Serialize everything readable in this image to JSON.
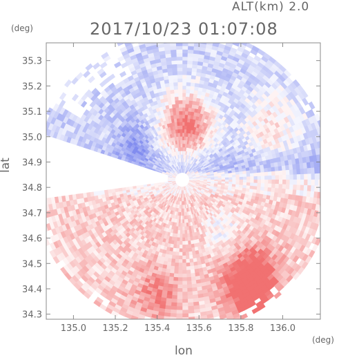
{
  "chart_data": {
    "type": "heatmap",
    "title": "2017/10/23 01:07:08",
    "altitude_label": "ALT(km) 2.0",
    "xlabel": "lon",
    "ylabel": "lat",
    "x_unit": "(deg)",
    "y_unit": "(deg)",
    "xlim": [
      134.87,
      136.18
    ],
    "ylim": [
      34.28,
      35.37
    ],
    "xticks": [
      "135.0",
      "135.2",
      "135.4",
      "135.6",
      "135.8",
      "136.0"
    ],
    "xtick_values": [
      135.0,
      135.2,
      135.4,
      135.6,
      135.8,
      136.0
    ],
    "yticks": [
      "34.3",
      "34.4",
      "34.5",
      "34.6",
      "34.7",
      "34.8",
      "34.9",
      "35.0",
      "35.1",
      "35.2",
      "35.3"
    ],
    "ytick_values": [
      34.3,
      34.4,
      34.5,
      34.6,
      34.7,
      34.8,
      34.9,
      35.0,
      35.1,
      35.2,
      35.3
    ],
    "radar_center": [
      135.52,
      34.83
    ],
    "radar_range_deg": 0.6,
    "color_negative": "#7a86ee",
    "color_positive": "#f06a6a",
    "regions": [
      {
        "name": "north band (blue)",
        "lat_range": [
          34.83,
          35.3
        ],
        "sign": "negative"
      },
      {
        "name": "north core (red)",
        "center": [
          135.54,
          35.05
        ],
        "sign": "positive",
        "intensity": 0.9
      },
      {
        "name": "north-east arc (red)",
        "center": [
          135.95,
          35.05
        ],
        "sign": "positive",
        "intensity": 0.4
      },
      {
        "name": "south band (red)",
        "lat_range": [
          34.28,
          34.83
        ],
        "sign": "positive"
      },
      {
        "name": "south core (red)",
        "center": [
          135.85,
          34.42
        ],
        "sign": "positive",
        "intensity": 0.9
      }
    ]
  }
}
